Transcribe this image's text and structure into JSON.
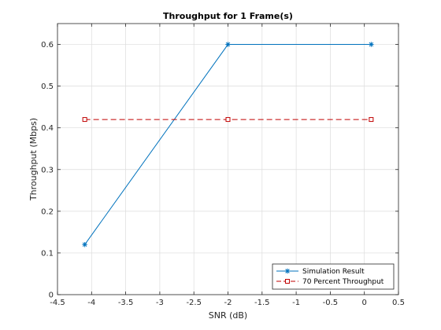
{
  "chart_data": {
    "type": "line",
    "title": "Throughput for 1 Frame(s)",
    "xlabel": "SNR (dB)",
    "ylabel": "Throughput (Mbps)",
    "xlim": [
      -4.5,
      0.5
    ],
    "ylim": [
      0,
      0.65
    ],
    "xticks": [
      -4.5,
      -4,
      -3.5,
      -3,
      -2.5,
      -2,
      -1.5,
      -1,
      -0.5,
      0,
      0.5
    ],
    "xtick_labels": [
      "-4.5",
      "-4",
      "-3.5",
      "-3",
      "-2.5",
      "-2",
      "-1.5",
      "-1",
      "-0.5",
      "0",
      "0.5"
    ],
    "yticks": [
      0,
      0.1,
      0.2,
      0.3,
      0.4,
      0.5,
      0.6
    ],
    "ytick_labels": [
      "0",
      "0.1",
      "0.2",
      "0.3",
      "0.4",
      "0.5",
      "0.6"
    ],
    "grid": true,
    "legend_position": "bottom-right",
    "series": [
      {
        "name": "Simulation Result",
        "x": [
          -4.1,
          -2.0,
          0.1
        ],
        "y": [
          0.12,
          0.6,
          0.6
        ],
        "color": "#0072BD",
        "marker": "asterisk",
        "line_style": "solid"
      },
      {
        "name": "70 Percent Throughput",
        "x": [
          -4.1,
          -2.0,
          0.1
        ],
        "y": [
          0.42,
          0.42,
          0.42
        ],
        "color": "#C00000",
        "marker": "square",
        "line_style": "dashed"
      }
    ]
  }
}
